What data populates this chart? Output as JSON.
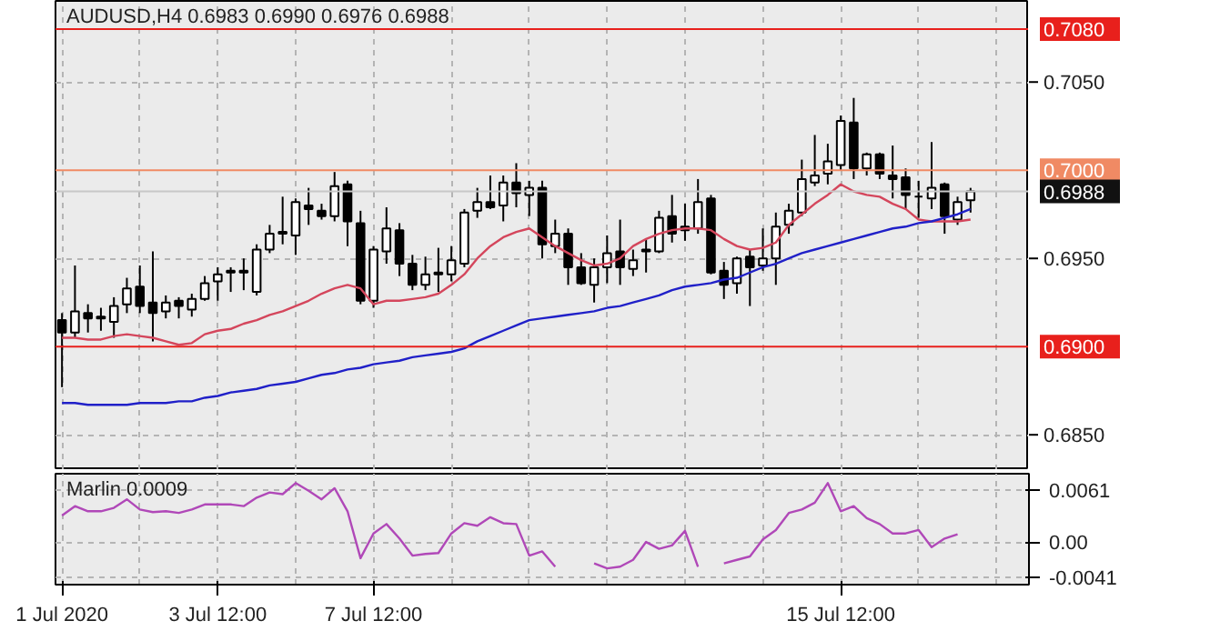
{
  "chart_data": [
    {
      "type": "candlestick",
      "title": "AUDUSD,H4  0.6983 0.6990 0.6976 0.6988",
      "tick_labels": "y",
      "grid": true,
      "categories": [
        null,
        null,
        null,
        null,
        null,
        null,
        null,
        null,
        null,
        null,
        null,
        null,
        null,
        null,
        null,
        null,
        null,
        null,
        null,
        null,
        null,
        null,
        null,
        null,
        null,
        null,
        null,
        null,
        null,
        null,
        null,
        null,
        null,
        null,
        null,
        null,
        null,
        null,
        null,
        null,
        null,
        null,
        null,
        null,
        null,
        null,
        null,
        null,
        null,
        null,
        null,
        null,
        null,
        null,
        null,
        null,
        null,
        null,
        null,
        null,
        null,
        null,
        null,
        null,
        null,
        null,
        null,
        null,
        null,
        null,
        null
      ],
      "ohlc": [
        [
          0.6915,
          0.6919,
          0.6877,
          0.6908
        ],
        [
          0.6908,
          0.6946,
          0.6905,
          0.692
        ],
        [
          0.6919,
          0.6924,
          0.6908,
          0.6916
        ],
        [
          0.6917,
          0.6922,
          0.6909,
          0.6916
        ],
        [
          0.6914,
          0.6928,
          0.6905,
          0.6923
        ],
        [
          0.6924,
          0.6939,
          0.6919,
          0.6933
        ],
        [
          0.6934,
          0.6946,
          0.6919,
          0.6923
        ],
        [
          0.6925,
          0.6954,
          0.6903,
          0.6919
        ],
        [
          0.692,
          0.6929,
          0.6916,
          0.6925
        ],
        [
          0.6926,
          0.6928,
          0.6916,
          0.6923
        ],
        [
          0.6921,
          0.693,
          0.6917,
          0.6927
        ],
        [
          0.6927,
          0.694,
          0.6926,
          0.6936
        ],
        [
          0.6937,
          0.6945,
          0.6926,
          0.6941
        ],
        [
          0.6942,
          0.6945,
          0.6931,
          0.6943
        ],
        [
          0.6943,
          0.695,
          0.6932,
          0.6942
        ],
        [
          0.6931,
          0.6958,
          0.6929,
          0.6955
        ],
        [
          0.6955,
          0.6969,
          0.6953,
          0.6964
        ],
        [
          0.6964,
          0.6985,
          0.6958,
          0.6965
        ],
        [
          0.6963,
          0.6984,
          0.6952,
          0.6982
        ],
        [
          0.698,
          0.699,
          0.6969,
          0.6978
        ],
        [
          0.6977,
          0.6981,
          0.6972,
          0.6974
        ],
        [
          0.6974,
          0.6999,
          0.6971,
          0.6991
        ],
        [
          0.6992,
          0.6994,
          0.6957,
          0.6971
        ],
        [
          0.697,
          0.6977,
          0.6924,
          0.6926
        ],
        [
          0.6926,
          0.6957,
          0.6922,
          0.6955
        ],
        [
          0.6954,
          0.6979,
          0.6947,
          0.6967
        ],
        [
          0.6966,
          0.697,
          0.694,
          0.6947
        ],
        [
          0.6947,
          0.6952,
          0.6932,
          0.6935
        ],
        [
          0.6935,
          0.6951,
          0.6932,
          0.6941
        ],
        [
          0.6942,
          0.6956,
          0.6931,
          0.6941
        ],
        [
          0.6941,
          0.6957,
          0.6937,
          0.6949
        ],
        [
          0.6947,
          0.6978,
          0.6945,
          0.6976
        ],
        [
          0.6977,
          0.699,
          0.6973,
          0.6982
        ],
        [
          0.6982,
          0.6997,
          0.6978,
          0.6979
        ],
        [
          0.698,
          0.6997,
          0.6971,
          0.6993
        ],
        [
          0.6993,
          0.7004,
          0.6979,
          0.6987
        ],
        [
          0.6986,
          0.6994,
          0.6974,
          0.699
        ],
        [
          0.699,
          0.6994,
          0.695,
          0.6958
        ],
        [
          0.6957,
          0.6972,
          0.6953,
          0.6964
        ],
        [
          0.6964,
          0.6967,
          0.6935,
          0.6945
        ],
        [
          0.6945,
          0.6953,
          0.6935,
          0.6936
        ],
        [
          0.6935,
          0.695,
          0.6925,
          0.6945
        ],
        [
          0.6945,
          0.6963,
          0.6936,
          0.6953
        ],
        [
          0.6954,
          0.6972,
          0.6935,
          0.6945
        ],
        [
          0.6944,
          0.6955,
          0.694,
          0.6949
        ],
        [
          0.6954,
          0.6961,
          0.6942,
          0.6955
        ],
        [
          0.6954,
          0.6977,
          0.6953,
          0.6973
        ],
        [
          0.6974,
          0.6986,
          0.6959,
          0.6964
        ],
        [
          0.6968,
          0.6981,
          0.696,
          0.6966
        ],
        [
          0.6967,
          0.6995,
          0.6964,
          0.6982
        ],
        [
          0.6984,
          0.6986,
          0.6941,
          0.6942
        ],
        [
          0.6943,
          0.6948,
          0.6927,
          0.6935
        ],
        [
          0.6936,
          0.6951,
          0.693,
          0.695
        ],
        [
          0.6951,
          0.6955,
          0.6923,
          0.6945
        ],
        [
          0.6946,
          0.6967,
          0.6943,
          0.695
        ],
        [
          0.695,
          0.6976,
          0.6935,
          0.6968
        ],
        [
          0.6969,
          0.6981,
          0.6964,
          0.6977
        ],
        [
          0.6976,
          0.7006,
          0.6974,
          0.6995
        ],
        [
          0.6993,
          0.702,
          0.6991,
          0.6997
        ],
        [
          0.6998,
          0.7015,
          0.6992,
          0.7005
        ],
        [
          0.7003,
          0.7031,
          0.7,
          0.7028
        ],
        [
          0.7027,
          0.7041,
          0.6995,
          0.7001
        ],
        [
          0.7001,
          0.701,
          0.6997,
          0.7009
        ],
        [
          0.7009,
          0.701,
          0.6995,
          0.6998
        ],
        [
          0.6997,
          0.7014,
          0.6984,
          0.6995
        ],
        [
          0.6996,
          0.7001,
          0.6978,
          0.6986
        ],
        [
          0.6985,
          0.6994,
          0.6973,
          0.6985
        ],
        [
          0.6984,
          0.7016,
          0.6978,
          0.699
        ],
        [
          0.6992,
          0.6993,
          0.6964,
          0.6974
        ],
        [
          0.6972,
          0.6985,
          0.6969,
          0.6982
        ],
        [
          0.6983,
          0.699,
          0.6976,
          0.6988
        ]
      ],
      "series": [
        {
          "type": "line",
          "color": "#d4465c",
          "values": [
            0.6905,
            0.6905,
            0.6904,
            0.6904,
            0.6906,
            0.6907,
            0.6906,
            0.6905,
            0.6903,
            0.6901,
            0.6902,
            0.6907,
            0.6909,
            0.691,
            0.6913,
            0.6915,
            0.6918,
            0.692,
            0.6923,
            0.6926,
            0.693,
            0.6933,
            0.6935,
            0.6933,
            0.6924,
            0.6926,
            0.6926,
            0.6927,
            0.6928,
            0.693,
            0.6935,
            0.6941,
            0.695,
            0.6957,
            0.6962,
            0.6965,
            0.6967,
            0.6962,
            0.6957,
            0.6953,
            0.6949,
            0.6946,
            0.6947,
            0.695,
            0.6957,
            0.6961,
            0.6964,
            0.6966,
            0.6967,
            0.6967,
            0.6966,
            0.6961,
            0.6957,
            0.6955,
            0.6956,
            0.6959,
            0.6969,
            0.6975,
            0.6981,
            0.6986,
            0.6992,
            0.6988,
            0.6986,
            0.6985,
            0.6981,
            0.6978,
            0.6972,
            0.6971,
            0.6971,
            0.6971,
            0.6972
          ]
        },
        {
          "type": "line",
          "color": "#2020c8",
          "values": [
            0.6868,
            0.6868,
            0.6867,
            0.6867,
            0.6867,
            0.6867,
            0.6868,
            0.6868,
            0.6868,
            0.6869,
            0.6869,
            0.6871,
            0.6872,
            0.6874,
            0.6875,
            0.6876,
            0.6878,
            0.6879,
            0.688,
            0.6882,
            0.6884,
            0.6885,
            0.6887,
            0.6888,
            0.689,
            0.6891,
            0.6892,
            0.6894,
            0.6895,
            0.6896,
            0.6897,
            0.6899,
            0.6903,
            0.6906,
            0.6909,
            0.6912,
            0.6915,
            0.6916,
            0.6917,
            0.6918,
            0.6919,
            0.692,
            0.6922,
            0.6923,
            0.6925,
            0.6927,
            0.6929,
            0.6932,
            0.6934,
            0.6935,
            0.6936,
            0.6938,
            0.6939,
            0.6942,
            0.6945,
            0.6947,
            0.695,
            0.6953,
            0.6955,
            0.6957,
            0.6959,
            0.6961,
            0.6963,
            0.6965,
            0.6967,
            0.6968,
            0.697,
            0.6971,
            0.6973,
            0.6975,
            0.6978
          ]
        }
      ],
      "ylim": [
        0.683,
        0.7096
      ],
      "yticks": [
        {
          "value": 0.705,
          "label": "0.7050"
        },
        {
          "value": 0.695,
          "label": "0.6950"
        },
        {
          "value": 0.685,
          "label": "0.6850"
        }
      ],
      "ref_lines": [
        {
          "axis": "y",
          "value": 0.708,
          "label": "0.7080",
          "color": "#e8201c"
        },
        {
          "axis": "y",
          "value": 0.7,
          "label": "0.7000",
          "color": "#f08a64"
        },
        {
          "axis": "y",
          "value": 0.6988,
          "label": "0.6988",
          "color": "#c8c8c8"
        },
        {
          "axis": "y",
          "value": 0.69,
          "label": "0.6900",
          "color": "#e8201c"
        }
      ]
    },
    {
      "type": "line",
      "title": "Marlin 0.0009",
      "color": "#b048b8",
      "grid": true,
      "categories": [
        "1 Jul 2020",
        null,
        null,
        null,
        null,
        null,
        null,
        null,
        null,
        null,
        null,
        null,
        "3 Jul 12:00",
        null,
        null,
        null,
        null,
        null,
        null,
        null,
        null,
        null,
        null,
        null,
        "7 Jul 12:00",
        null,
        null,
        null,
        null,
        null,
        null,
        null,
        null,
        null,
        null,
        null,
        null,
        null,
        null,
        null,
        null,
        null,
        null,
        null,
        null,
        null,
        null,
        null,
        null,
        null,
        null,
        null,
        null,
        null,
        null,
        null,
        null,
        null,
        null,
        null,
        "15 Jul 12:00",
        null,
        null,
        null,
        null,
        null,
        null,
        null,
        null,
        null,
        null
      ],
      "values": [
        0.0031,
        0.0042,
        0.0036,
        0.0036,
        0.004,
        0.005,
        0.0038,
        0.0035,
        0.0036,
        0.0034,
        0.0038,
        0.0044,
        0.0044,
        0.0044,
        0.0042,
        0.0052,
        0.0058,
        0.0056,
        0.0069,
        0.006,
        0.005,
        0.0063,
        0.0036,
        -0.0019,
        0.001,
        0.0021,
        0.0004,
        -0.0016,
        -0.0014,
        -0.0013,
        0.001,
        0.0022,
        0.0019,
        0.0029,
        0.0022,
        0.0021,
        -0.0016,
        -0.0011,
        -0.0029,
        null,
        null,
        -0.0025,
        -0.0031,
        -0.0029,
        -0.0021,
        0.0,
        -0.0008,
        -0.0004,
        0.0013,
        -0.0029,
        null,
        -0.0025,
        -0.0021,
        -0.0017,
        0.0003,
        0.0014,
        0.0034,
        0.0038,
        0.0046,
        0.0069,
        0.0036,
        0.0042,
        0.0028,
        0.0021,
        0.001,
        0.001,
        0.0014,
        -0.0006,
        0.0004,
        0.0009,
        null
      ],
      "ylim": [
        -0.005,
        0.008
      ],
      "yticks": [
        0.0061,
        {
          "value": 0,
          "label": "0.00"
        },
        -0.0041
      ]
    }
  ]
}
